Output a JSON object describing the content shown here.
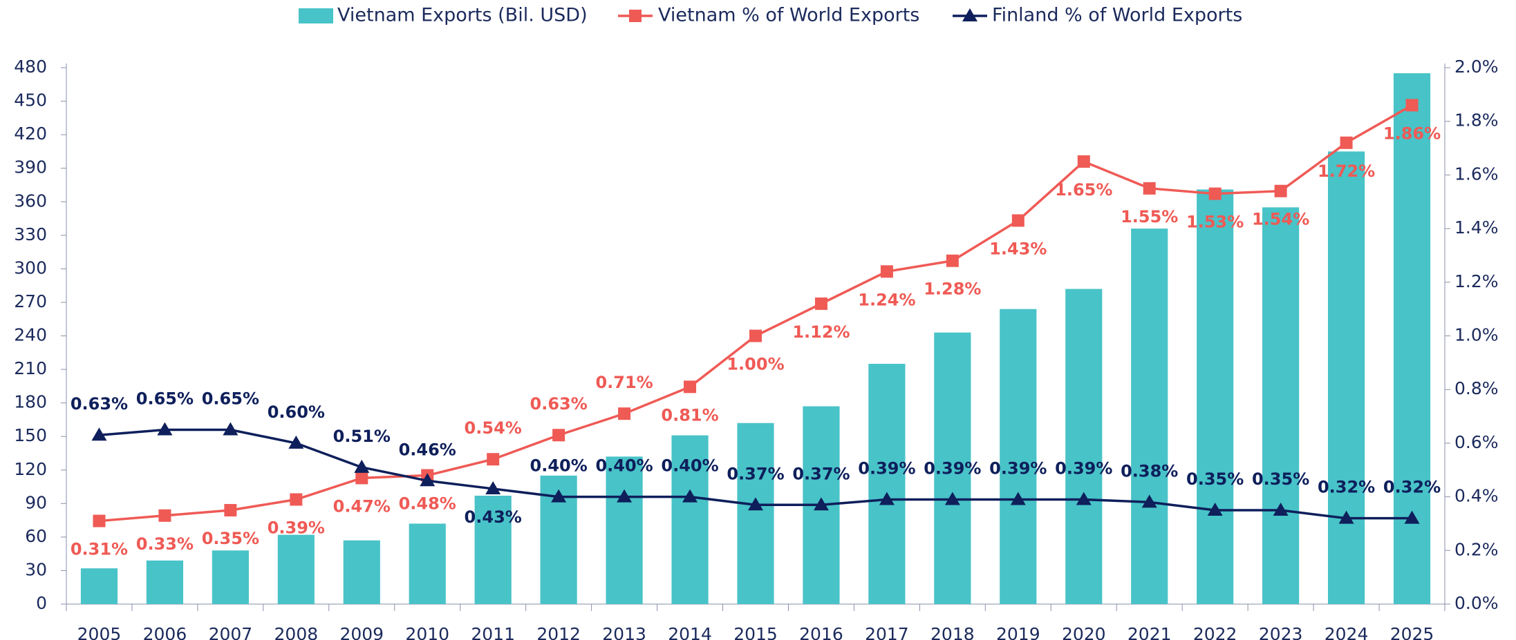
{
  "chart_data": {
    "type": "bar-line",
    "categories": [
      "2005",
      "2006",
      "2007",
      "2008",
      "2009",
      "2010",
      "2011",
      "2012",
      "2013",
      "2014",
      "2015",
      "2016",
      "2017",
      "2018",
      "2019",
      "2020",
      "2021",
      "2022",
      "2023",
      "2024",
      "2025"
    ],
    "series": [
      {
        "name": "Vietnam Exports (Bil. USD)",
        "type": "bar",
        "color": "#48c3c8",
        "values": [
          32,
          39,
          48,
          62,
          57,
          72,
          97,
          115,
          132,
          151,
          162,
          177,
          215,
          243,
          264,
          282,
          336,
          371,
          355,
          405,
          475
        ]
      },
      {
        "name": "Vietnam % of World Exports",
        "type": "line",
        "axis": "y2",
        "color": "#ef5a55",
        "marker": "square",
        "values": [
          0.31,
          0.33,
          0.35,
          0.39,
          0.47,
          0.48,
          0.54,
          0.63,
          0.71,
          0.81,
          1.0,
          1.12,
          1.24,
          1.28,
          1.43,
          1.65,
          1.55,
          1.53,
          1.54,
          1.72,
          1.86
        ],
        "value_labels": [
          "0.31%",
          "0.33%",
          "0.35%",
          "0.39%",
          "0.47%",
          "0.48%",
          "0.54%",
          "0.63%",
          "0.71%",
          "0.81%",
          "1.00%",
          "1.12%",
          "1.24%",
          "1.28%",
          "1.43%",
          "1.65%",
          "1.55%",
          "1.53%",
          "1.54%",
          "1.72%",
          "1.86%"
        ]
      },
      {
        "name": "Finland % of World Exports",
        "type": "line",
        "axis": "y2",
        "color": "#0e1f5b",
        "marker": "triangle",
        "values": [
          0.63,
          0.65,
          0.65,
          0.6,
          0.51,
          0.46,
          0.43,
          0.4,
          0.4,
          0.4,
          0.37,
          0.37,
          0.39,
          0.39,
          0.39,
          0.39,
          0.38,
          0.35,
          0.35,
          0.32,
          0.32
        ],
        "value_labels": [
          "0.63%",
          "0.65%",
          "0.65%",
          "0.60%",
          "0.51%",
          "0.46%",
          "0.43%",
          "0.40%",
          "0.40%",
          "0.40%",
          "0.37%",
          "0.37%",
          "0.39%",
          "0.39%",
          "0.39%",
          "0.39%",
          "0.38%",
          "0.35%",
          "0.35%",
          "0.32%",
          "0.32%"
        ]
      }
    ],
    "ylim": [
      0,
      480
    ],
    "yticks": [
      0,
      30,
      60,
      90,
      120,
      150,
      180,
      210,
      240,
      270,
      300,
      330,
      360,
      390,
      420,
      450,
      480
    ],
    "y2lim": [
      0,
      2
    ],
    "y2ticks": [
      {
        "value": 0,
        "label": "0.0%"
      },
      {
        "value": 0.2,
        "label": "0.2%"
      },
      {
        "value": 0.4,
        "label": "0.4%"
      },
      {
        "value": 0.6,
        "label": "0.6%"
      },
      {
        "value": 0.8,
        "label": "0.8%"
      },
      {
        "value": 1.0,
        "label": "1.0%"
      },
      {
        "value": 1.2,
        "label": "1.2%"
      },
      {
        "value": 1.4,
        "label": "1.4%"
      },
      {
        "value": 1.6,
        "label": "1.6%"
      },
      {
        "value": 1.8,
        "label": "1.8%"
      },
      {
        "value": 2.0,
        "label": "2.0%"
      }
    ],
    "legend": "top"
  }
}
